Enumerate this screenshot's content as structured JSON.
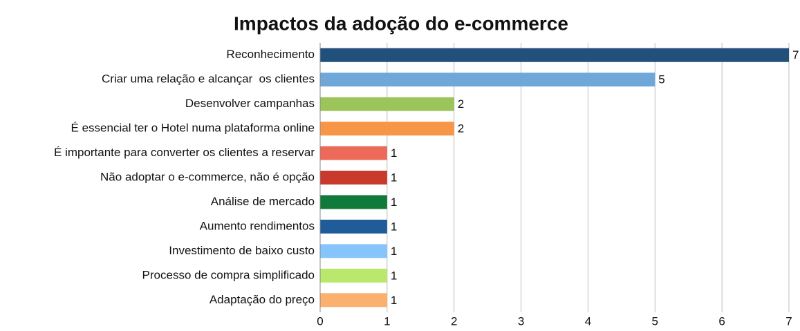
{
  "chart_data": {
    "type": "barh",
    "title": "Impactos da adoção do e-commerce",
    "categories": [
      "Reconhecimento",
      "Criar uma relação e alcançar  os clientes",
      "Desenvolver campanhas",
      "É essencial ter o Hotel numa plataforma online",
      "É importante para converter os clientes a reservar",
      "Não adoptar o e-commerce, não é opção",
      "Análise de mercado",
      "Aumento rendimentos",
      "Investimento de baixo custo",
      "Processo de compra simplificado",
      "Adaptação do preço"
    ],
    "values": [
      7,
      5,
      2,
      2,
      1,
      1,
      1,
      1,
      1,
      1,
      1
    ],
    "colors": [
      "#21507d",
      "#6fa7d8",
      "#9bc45a",
      "#f79646",
      "#ee6a58",
      "#c9392c",
      "#0f7a3a",
      "#1f5c99",
      "#86c4fc",
      "#b9e86c",
      "#fbb06e"
    ],
    "xlim": [
      0,
      7
    ],
    "xticks": [
      0,
      1,
      2,
      3,
      4,
      5,
      6,
      7
    ],
    "grid": true
  }
}
